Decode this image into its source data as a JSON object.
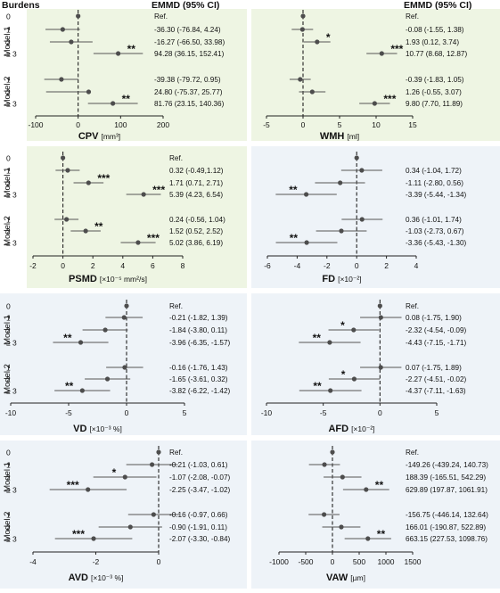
{
  "header": {
    "left_label": "Burdens",
    "ci_header": "EMMD (95% CI)"
  },
  "row_labels": [
    "0",
    "1",
    "2",
    "≥ 3",
    "1",
    "2",
    "≥ 3"
  ],
  "model_labels": [
    "Model 1",
    "Model 2"
  ],
  "colors": {
    "green_bg": "#eef5e3",
    "blue_bg": "#eef3f8",
    "point": "#4d4d4d",
    "line": "#555555",
    "text": "#111111"
  },
  "chart_data": [
    {
      "type": "forest",
      "name": "CPV",
      "xlabel": "CPV",
      "unit": "[mm³]",
      "background": "green",
      "xlim": [
        -100,
        200
      ],
      "xticks": [
        -100,
        0,
        100,
        200
      ],
      "estimates": [
        {
          "group": "Model 1",
          "row": "0",
          "est": 0,
          "lo": null,
          "hi": null,
          "sig": "",
          "ci_text": "Ref."
        },
        {
          "group": "Model 1",
          "row": "1",
          "est": -36.3,
          "lo": -76.84,
          "hi": 4.24,
          "sig": "",
          "ci_text": "-36.30 (-76.84, 4.24)"
        },
        {
          "group": "Model 1",
          "row": "2",
          "est": -16.27,
          "lo": -66.5,
          "hi": 33.98,
          "sig": "",
          "ci_text": "-16.27 (-66.50, 33.98)"
        },
        {
          "group": "Model 1",
          "row": "≥ 3",
          "est": 94.28,
          "lo": 36.15,
          "hi": 152.41,
          "sig": "**",
          "ci_text": "94.28 (36.15, 152.41)"
        },
        {
          "group": "Model 2",
          "row": "1",
          "est": -39.38,
          "lo": -79.72,
          "hi": 0.95,
          "sig": "",
          "ci_text": "-39.38 (-79.72, 0.95)"
        },
        {
          "group": "Model 2",
          "row": "2",
          "est": 24.8,
          "lo": -75.37,
          "hi": 25.77,
          "sig": "",
          "ci_text": "24.80 (-75.37, 25.77)"
        },
        {
          "group": "Model 2",
          "row": "≥ 3",
          "est": 81.76,
          "lo": 23.15,
          "hi": 140.36,
          "sig": "**",
          "ci_text": "81.76 (23.15, 140.36)"
        }
      ]
    },
    {
      "type": "forest",
      "name": "WMH",
      "xlabel": "WMH",
      "unit": "[ml]",
      "background": "green",
      "xlim": [
        -5,
        15
      ],
      "xticks": [
        -5,
        0,
        5,
        10,
        15
      ],
      "estimates": [
        {
          "group": "Model 1",
          "row": "0",
          "est": 0,
          "lo": null,
          "hi": null,
          "sig": "",
          "ci_text": "Ref."
        },
        {
          "group": "Model 1",
          "row": "1",
          "est": -0.08,
          "lo": -1.55,
          "hi": 1.38,
          "sig": "",
          "ci_text": "-0.08 (-1.55, 1.38)"
        },
        {
          "group": "Model 1",
          "row": "2",
          "est": 1.93,
          "lo": 0.12,
          "hi": 3.74,
          "sig": "*",
          "ci_text": "1.93 (0.12, 3.74)"
        },
        {
          "group": "Model 1",
          "row": "≥ 3",
          "est": 10.77,
          "lo": 8.68,
          "hi": 12.87,
          "sig": "***",
          "ci_text": "10.77 (8.68, 12.87)"
        },
        {
          "group": "Model 2",
          "row": "1",
          "est": -0.39,
          "lo": -1.83,
          "hi": 1.05,
          "sig": "",
          "ci_text": "-0.39 (-1.83, 1.05)"
        },
        {
          "group": "Model 2",
          "row": "2",
          "est": 1.26,
          "lo": -0.55,
          "hi": 3.07,
          "sig": "",
          "ci_text": "1.26 (-0.55, 3.07)"
        },
        {
          "group": "Model 2",
          "row": "≥ 3",
          "est": 9.8,
          "lo": 7.7,
          "hi": 11.89,
          "sig": "***",
          "ci_text": "9.80 (7.70, 11.89)"
        }
      ]
    },
    {
      "type": "forest",
      "name": "PSMD",
      "xlabel": "PSMD",
      "unit": "[×10⁻⁵ mm²/s]",
      "background": "green",
      "xlim": [
        -2,
        8
      ],
      "xticks": [
        -2,
        0,
        2,
        4,
        6,
        8
      ],
      "estimates": [
        {
          "group": "Model 1",
          "row": "0",
          "est": 0,
          "lo": null,
          "hi": null,
          "sig": "",
          "ci_text": "Ref."
        },
        {
          "group": "Model 1",
          "row": "1",
          "est": 0.32,
          "lo": -0.49,
          "hi": 1.12,
          "sig": "",
          "ci_text": "0.32 (-0.49,1.12)"
        },
        {
          "group": "Model 1",
          "row": "2",
          "est": 1.71,
          "lo": 0.71,
          "hi": 2.71,
          "sig": "***",
          "ci_text": "1.71 (0.71, 2.71)"
        },
        {
          "group": "Model 1",
          "row": "≥ 3",
          "est": 5.39,
          "lo": 4.23,
          "hi": 6.54,
          "sig": "***",
          "ci_text": "5.39 (4.23, 6.54)"
        },
        {
          "group": "Model 2",
          "row": "1",
          "est": 0.24,
          "lo": -0.56,
          "hi": 1.04,
          "sig": "",
          "ci_text": "0.24 (-0.56, 1.04)"
        },
        {
          "group": "Model 2",
          "row": "2",
          "est": 1.52,
          "lo": 0.52,
          "hi": 2.52,
          "sig": "**",
          "ci_text": "1.52 (0.52, 2.52)"
        },
        {
          "group": "Model 2",
          "row": "≥ 3",
          "est": 5.02,
          "lo": 3.86,
          "hi": 6.19,
          "sig": "***",
          "ci_text": "5.02 (3.86, 6.19)"
        }
      ]
    },
    {
      "type": "forest",
      "name": "FD",
      "xlabel": "FD",
      "unit": "[×10⁻²]",
      "background": "blue",
      "xlim": [
        -6,
        4
      ],
      "xticks": [
        -6,
        -4,
        -2,
        0,
        2,
        4
      ],
      "estimates": [
        {
          "group": "Model 1",
          "row": "0",
          "est": 0,
          "lo": null,
          "hi": null,
          "sig": "",
          "ci_text": ""
        },
        {
          "group": "Model 1",
          "row": "1",
          "est": 0.34,
          "lo": -1.04,
          "hi": 1.72,
          "sig": "",
          "ci_text": "0.34 (-1.04, 1.72)"
        },
        {
          "group": "Model 1",
          "row": "2",
          "est": -1.11,
          "lo": -2.8,
          "hi": 0.56,
          "sig": "",
          "ci_text": "-1.11 (-2.80, 0.56)"
        },
        {
          "group": "Model 1",
          "row": "≥ 3",
          "est": -3.39,
          "lo": -5.44,
          "hi": -1.34,
          "sig": "**",
          "ci_text": "-3.39 (-5.44, -1.34)"
        },
        {
          "group": "Model 2",
          "row": "1",
          "est": 0.36,
          "lo": -1.01,
          "hi": 1.74,
          "sig": "",
          "ci_text": "0.36 (-1.01, 1.74)"
        },
        {
          "group": "Model 2",
          "row": "2",
          "est": -1.03,
          "lo": -2.73,
          "hi": 0.67,
          "sig": "",
          "ci_text": "-1.03 (-2.73, 0.67)"
        },
        {
          "group": "Model 2",
          "row": "≥ 3",
          "est": -3.36,
          "lo": -5.43,
          "hi": -1.3,
          "sig": "**",
          "ci_text": "-3.36 (-5.43, -1.30)"
        }
      ]
    },
    {
      "type": "forest",
      "name": "VD",
      "xlabel": "VD",
      "unit": "[×10⁻³ %]",
      "background": "blue",
      "xlim": [
        -10,
        5
      ],
      "xticks": [
        -10,
        -5,
        0,
        5
      ],
      "estimates": [
        {
          "group": "Model 1",
          "row": "0",
          "est": 0,
          "lo": null,
          "hi": null,
          "sig": "",
          "ci_text": "Ref."
        },
        {
          "group": "Model 1",
          "row": "1",
          "est": -0.21,
          "lo": -1.82,
          "hi": 1.39,
          "sig": "",
          "ci_text": "-0.21 (-1.82, 1.39)"
        },
        {
          "group": "Model 1",
          "row": "2",
          "est": -1.84,
          "lo": -3.8,
          "hi": 0.11,
          "sig": "",
          "ci_text": "-1.84 (-3.80, 0.11)"
        },
        {
          "group": "Model 1",
          "row": "≥ 3",
          "est": -3.96,
          "lo": -6.35,
          "hi": -1.57,
          "sig": "**",
          "ci_text": "-3.96 (-6.35, -1.57)"
        },
        {
          "group": "Model 2",
          "row": "1",
          "est": -0.16,
          "lo": -1.76,
          "hi": 1.43,
          "sig": "",
          "ci_text": "-0.16 (-1.76, 1.43)"
        },
        {
          "group": "Model 2",
          "row": "2",
          "est": -1.65,
          "lo": -3.61,
          "hi": 0.32,
          "sig": "",
          "ci_text": "-1.65 (-3.61, 0.32)"
        },
        {
          "group": "Model 2",
          "row": "≥ 3",
          "est": -3.82,
          "lo": -6.22,
          "hi": -1.42,
          "sig": "**",
          "ci_text": "-3.82 (-6.22, -1.42)"
        }
      ]
    },
    {
      "type": "forest",
      "name": "AFD",
      "xlabel": "AFD",
      "unit": "[×10⁻²]",
      "background": "blue",
      "xlim": [
        -10,
        5
      ],
      "xticks": [
        -10,
        -5,
        0,
        5
      ],
      "estimates": [
        {
          "group": "Model 1",
          "row": "0",
          "est": 0,
          "lo": null,
          "hi": null,
          "sig": "",
          "ci_text": "Ref."
        },
        {
          "group": "Model 1",
          "row": "1",
          "est": 0.08,
          "lo": -1.75,
          "hi": 1.9,
          "sig": "",
          "ci_text": "0.08 (-1.75, 1.90)"
        },
        {
          "group": "Model 1",
          "row": "2",
          "est": -2.32,
          "lo": -4.54,
          "hi": -0.09,
          "sig": "*",
          "ci_text": "-2.32 (-4.54, -0.09)"
        },
        {
          "group": "Model 1",
          "row": "≥ 3",
          "est": -4.43,
          "lo": -7.15,
          "hi": -1.71,
          "sig": "**",
          "ci_text": "-4.43 (-7.15, -1.71)"
        },
        {
          "group": "Model 2",
          "row": "1",
          "est": 0.07,
          "lo": -1.75,
          "hi": 1.89,
          "sig": "",
          "ci_text": "0.07 (-1.75, 1.89)"
        },
        {
          "group": "Model 2",
          "row": "2",
          "est": -2.27,
          "lo": -4.51,
          "hi": -0.02,
          "sig": "*",
          "ci_text": "-2.27 (-4.51, -0.02)"
        },
        {
          "group": "Model 2",
          "row": "≥ 3",
          "est": -4.37,
          "lo": -7.11,
          "hi": -1.63,
          "sig": "**",
          "ci_text": "-4.37 (-7.11, -1.63)"
        }
      ]
    },
    {
      "type": "forest",
      "name": "AVD",
      "xlabel": "AVD",
      "unit": "[×10⁻³ %]",
      "background": "blue",
      "xlim": [
        -4,
        0
      ],
      "xticks": [
        -4,
        -2,
        0
      ],
      "estimates": [
        {
          "group": "Model 1",
          "row": "0",
          "est": 0,
          "lo": null,
          "hi": null,
          "sig": "",
          "ci_text": "Ref."
        },
        {
          "group": "Model 1",
          "row": "1",
          "est": -0.21,
          "lo": -1.03,
          "hi": 0.61,
          "sig": "",
          "ci_text": "-0.21 (-1.03, 0.61)"
        },
        {
          "group": "Model 1",
          "row": "2",
          "est": -1.07,
          "lo": -2.08,
          "hi": -0.07,
          "sig": "*",
          "ci_text": "-1.07 (-2.08, -0.07)"
        },
        {
          "group": "Model 1",
          "row": "≥ 3",
          "est": -2.25,
          "lo": -3.47,
          "hi": -1.02,
          "sig": "***",
          "ci_text": "-2.25 (-3.47, -1.02)"
        },
        {
          "group": "Model 2",
          "row": "1",
          "est": -0.16,
          "lo": -0.97,
          "hi": 0.66,
          "sig": "",
          "ci_text": "-0.16 (-0.97, 0.66)"
        },
        {
          "group": "Model 2",
          "row": "2",
          "est": -0.9,
          "lo": -1.91,
          "hi": 0.11,
          "sig": "",
          "ci_text": "-0.90 (-1.91, 0.11)"
        },
        {
          "group": "Model 2",
          "row": "≥ 3",
          "est": -2.07,
          "lo": -3.3,
          "hi": -0.84,
          "sig": "***",
          "ci_text": "-2.07 (-3.30, -0.84)"
        }
      ]
    },
    {
      "type": "forest",
      "name": "VAW",
      "xlabel": "VAW",
      "unit": "[µm]",
      "background": "blue",
      "xlim": [
        -1000,
        1500
      ],
      "xticks": [
        -1000,
        -500,
        0,
        500,
        1000,
        1500
      ],
      "estimates": [
        {
          "group": "Model 1",
          "row": "0",
          "est": 0,
          "lo": null,
          "hi": null,
          "sig": "",
          "ci_text": "Ref."
        },
        {
          "group": "Model 1",
          "row": "1",
          "est": -149.26,
          "lo": -439.24,
          "hi": 140.73,
          "sig": "",
          "ci_text": "-149.26 (-439.24, 140.73)"
        },
        {
          "group": "Model 1",
          "row": "2",
          "est": 188.39,
          "lo": -165.51,
          "hi": 542.29,
          "sig": "",
          "ci_text": "188.39 (-165.51, 542.29)"
        },
        {
          "group": "Model 1",
          "row": "≥ 3",
          "est": 629.89,
          "lo": 197.87,
          "hi": 1061.91,
          "sig": "**",
          "ci_text": "629.89 (197.87, 1061.91)"
        },
        {
          "group": "Model 2",
          "row": "1",
          "est": -156.75,
          "lo": -446.14,
          "hi": 132.64,
          "sig": "",
          "ci_text": "-156.75 (-446.14, 132.64)"
        },
        {
          "group": "Model 2",
          "row": "2",
          "est": 166.01,
          "lo": -190.87,
          "hi": 522.89,
          "sig": "",
          "ci_text": "166.01 (-190.87, 522.89)"
        },
        {
          "group": "Model 2",
          "row": "≥ 3",
          "est": 663.15,
          "lo": 227.53,
          "hi": 1098.76,
          "sig": "**",
          "ci_text": "663.15 (227.53, 1098.76)"
        }
      ]
    }
  ]
}
